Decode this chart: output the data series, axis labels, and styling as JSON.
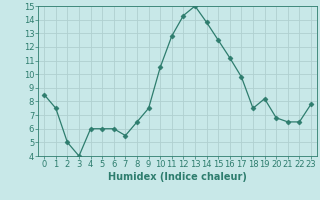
{
  "x": [
    0,
    1,
    2,
    3,
    4,
    5,
    6,
    7,
    8,
    9,
    10,
    11,
    12,
    13,
    14,
    15,
    16,
    17,
    18,
    19,
    20,
    21,
    22,
    23
  ],
  "y": [
    8.5,
    7.5,
    5.0,
    4.0,
    6.0,
    6.0,
    6.0,
    5.5,
    6.5,
    7.5,
    10.5,
    12.8,
    14.3,
    15.0,
    13.8,
    12.5,
    11.2,
    9.8,
    7.5,
    8.2,
    6.8,
    6.5,
    6.5,
    7.8
  ],
  "line_color": "#2e7d6e",
  "marker": "D",
  "marker_size": 2.5,
  "bg_color": "#c8e8e8",
  "grid_color": "#b0d0d0",
  "xlabel": "Humidex (Indice chaleur)",
  "ylim": [
    4,
    15
  ],
  "xlim": [
    -0.5,
    23.5
  ],
  "yticks": [
    4,
    5,
    6,
    7,
    8,
    9,
    10,
    11,
    12,
    13,
    14,
    15
  ],
  "xticks": [
    0,
    1,
    2,
    3,
    4,
    5,
    6,
    7,
    8,
    9,
    10,
    11,
    12,
    13,
    14,
    15,
    16,
    17,
    18,
    19,
    20,
    21,
    22,
    23
  ],
  "tick_color": "#2e7d6e",
  "label_fontsize": 7,
  "tick_fontsize": 6
}
